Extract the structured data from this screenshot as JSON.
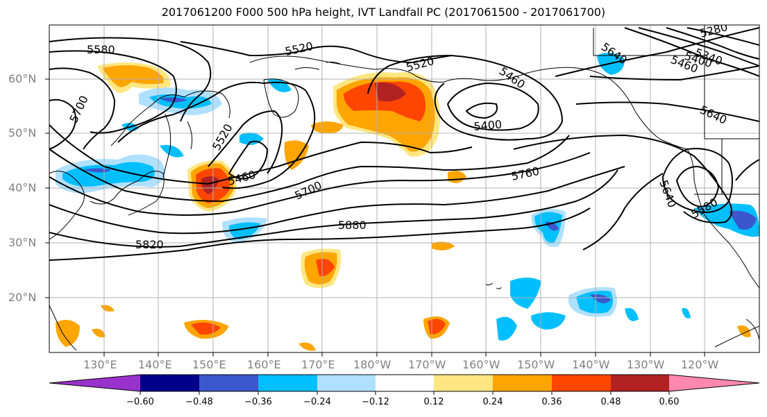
{
  "title": "2017061200 F000 500 hPa height, IVT Landfall PC (2017061500 - 2017061700)",
  "lat_labels": [
    "60°N",
    "50°N",
    "40°N",
    "30°N",
    "20°N"
  ],
  "lon_labels": [
    "130°E",
    "140°E",
    "150°E",
    "160°E",
    "170°E",
    "180°W",
    "170°W",
    "160°W",
    "150°W",
    "140°W",
    "130°W",
    "120°W"
  ],
  "contour_labels": [
    "5580",
    "5520",
    "5520",
    "5460",
    "5520",
    "5400",
    "5700",
    "5460",
    "5700",
    "5760",
    "5640",
    "5280",
    "5340",
    "5400",
    "5460",
    "5640",
    "5580",
    "5880",
    "5820",
    "5640"
  ],
  "colorbar": {
    "ticks": [
      "−0.60",
      "−0.48",
      "−0.36",
      "−0.24",
      "−0.12",
      "0.12",
      "0.24",
      "0.36",
      "0.48",
      "0.60"
    ],
    "colors": [
      "#9932cc",
      "#00008b",
      "#3a57cc",
      "#00bfff",
      "#b0e0ff",
      "#ffffff",
      "#ffe680",
      "#ffa500",
      "#ff4500",
      "#b22222",
      "#ff88b0"
    ]
  },
  "colors": {
    "neg_strong": "#3a57cc",
    "neg_mid": "#00bfff",
    "neg_weak": "#b0e0ff",
    "pos_weak": "#ffe680",
    "pos_mid": "#ffa500",
    "pos_strong": "#ff4500",
    "pos_max": "#b22222"
  }
}
